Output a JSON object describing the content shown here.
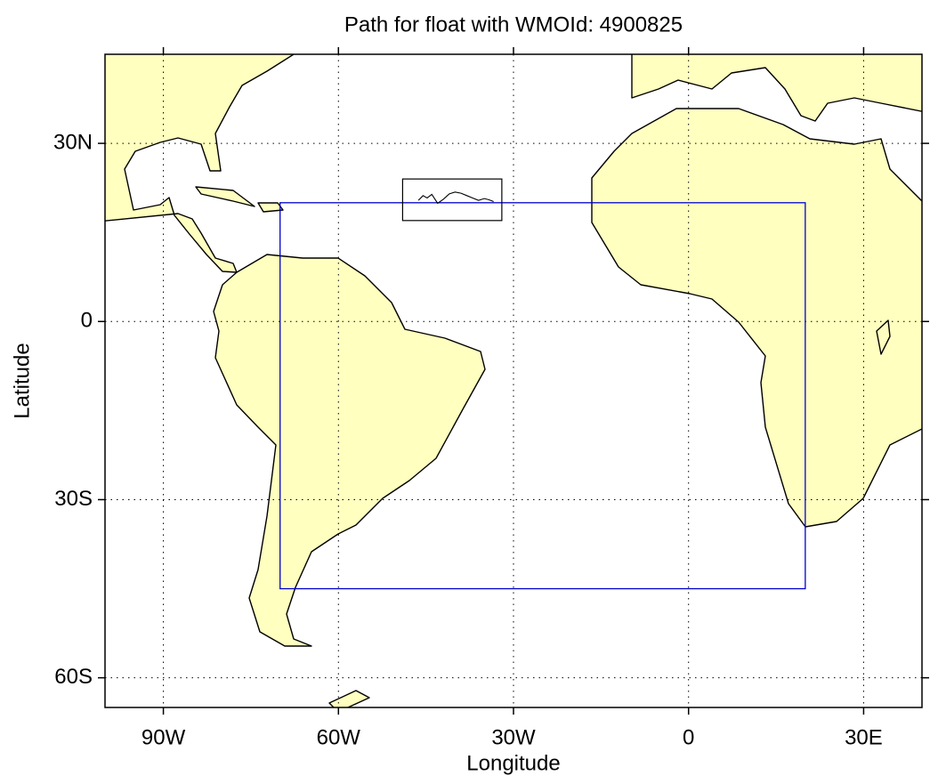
{
  "chart_data": {
    "type": "map",
    "title": "Path for float with WMOId: 4900825",
    "xlabel": "Longitude",
    "ylabel": "Latitude",
    "xlim": [
      -100,
      40
    ],
    "ylim": [
      -65,
      45
    ],
    "xticks": [
      {
        "value": -90,
        "label": "90W"
      },
      {
        "value": -60,
        "label": "60W"
      },
      {
        "value": -30,
        "label": "30W"
      },
      0,
      {
        "value": 30,
        "label": "30E"
      }
    ],
    "yticks": [
      {
        "value": 30,
        "label": "30N"
      },
      0,
      {
        "value": -30,
        "label": "30S"
      },
      {
        "value": -60,
        "label": "60S"
      }
    ],
    "grid": true,
    "land_color": "#ffffc0",
    "region": {
      "lon": [
        -70,
        20
      ],
      "lat": [
        -45,
        20
      ],
      "color": "#0000cc"
    },
    "zoom_box": {
      "lon": [
        -49,
        -32
      ],
      "lat": [
        17,
        24
      ],
      "color": "#000000"
    },
    "path": {
      "color": "#000000",
      "lon": [
        -46.3,
        -45.5,
        -44.8,
        -44.0,
        -43.0,
        -42.0,
        -41.0,
        -40.0,
        -39.0,
        -38.0,
        -37.0,
        -36.0,
        -35.0,
        -34.2,
        -33.4
      ],
      "lat": [
        20.4,
        21.2,
        20.8,
        21.4,
        19.9,
        20.6,
        21.5,
        21.8,
        21.6,
        21.2,
        20.8,
        20.4,
        20.7,
        20.5,
        20.2
      ]
    }
  }
}
